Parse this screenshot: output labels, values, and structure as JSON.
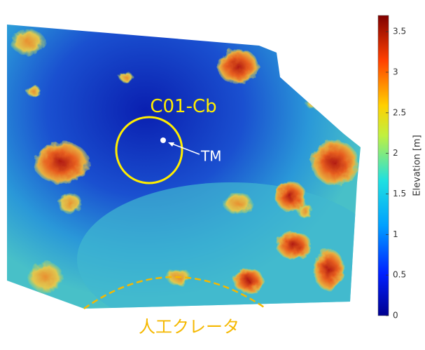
{
  "colorbar": {
    "label": "Elevation [m]",
    "lim": [
      0,
      3.7
    ],
    "ticks": [
      0,
      0.5,
      1,
      1.5,
      2,
      2.5,
      3,
      3.5
    ]
  },
  "annotations": {
    "site": "C01-Cb",
    "marker": "TM",
    "crater": "人工クレータ"
  }
}
